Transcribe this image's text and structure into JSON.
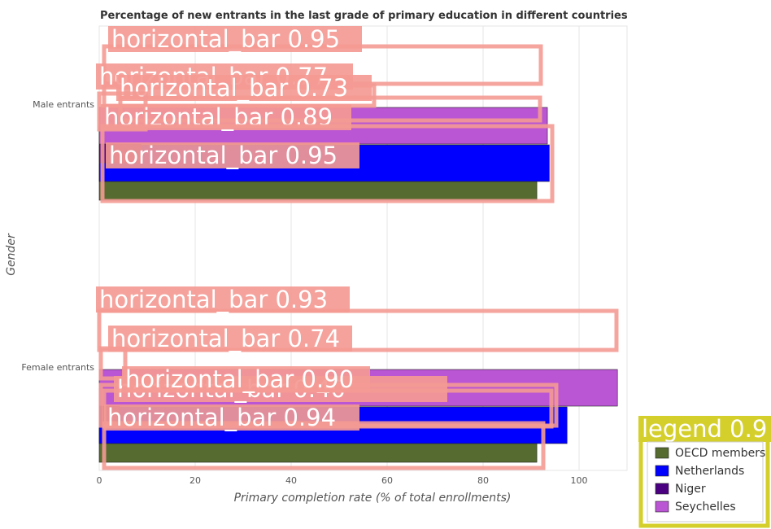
{
  "chart_data": {
    "type": "bar",
    "orientation": "horizontal",
    "title": "Percentage of new entrants in the last grade of primary education in different countries",
    "xlabel": "Primary completion rate (% of total enrollments)",
    "ylabel": "Gender",
    "categories": [
      "Female entrants",
      "Male entrants"
    ],
    "xlim": [
      0,
      110
    ],
    "xticks": [
      "0",
      "20",
      "40",
      "60",
      "80",
      "100"
    ],
    "grid": true,
    "legend_position": "bottom-right",
    "series": [
      {
        "name": "OECD members",
        "color": "#556b2f",
        "values": [
          91.2,
          91.2
        ]
      },
      {
        "name": "Netherlands",
        "color": "#0000ff",
        "values": [
          97.5,
          93.8
        ]
      },
      {
        "name": "Niger",
        "color": "#4b0082",
        "values": [
          4.3,
          8.7
        ]
      },
      {
        "name": "Seychelles",
        "color": "#ba55d3",
        "values": [
          108.0,
          93.4
        ]
      }
    ],
    "detection_overlays": [
      {
        "text": "horizontal_bar  0.95"
      },
      {
        "text": "horizontal_bar  0.77"
      },
      {
        "text": "horizontal_bar  0.73"
      },
      {
        "text": "horizontal_bar  0.89"
      },
      {
        "text": "horizontal_bar  0.95"
      },
      {
        "text": "horizontal_bar  0.93"
      },
      {
        "text": "horizontal_bar  0.74"
      },
      {
        "text": "horizontal_bar  0.40"
      },
      {
        "text": "horizontal_bar  0.90"
      },
      {
        "text": "horizontal_bar  0.94"
      },
      {
        "text": "legend  0.9"
      }
    ]
  }
}
